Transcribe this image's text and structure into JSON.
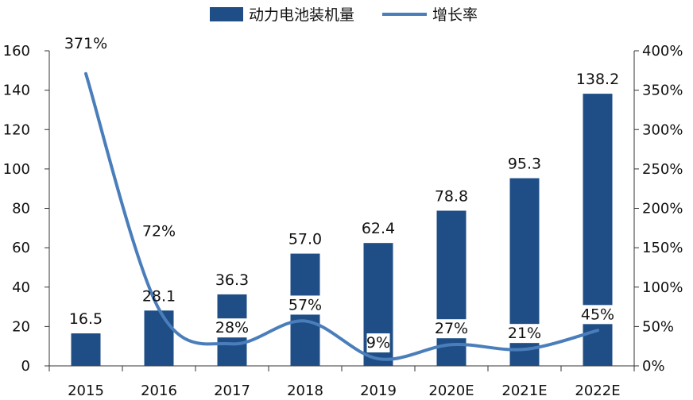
{
  "chart_data": {
    "type": "bar",
    "categories": [
      "2015",
      "2016",
      "2017",
      "2018",
      "2019",
      "2020E",
      "2021E",
      "2022E"
    ],
    "series": [
      {
        "name": "动力电池装机量",
        "chart_type": "bar",
        "axis": "left",
        "values": [
          16.5,
          28.1,
          36.3,
          57.0,
          62.4,
          78.8,
          95.3,
          138.2
        ],
        "labels": [
          "16.5",
          "28.1",
          "36.3",
          "57.0",
          "62.4",
          "78.8",
          "95.3",
          "138.2"
        ],
        "color": "#1f4e86"
      },
      {
        "name": "增长率",
        "chart_type": "line",
        "axis": "right",
        "values": [
          371,
          72,
          28,
          57,
          9,
          27,
          21,
          45
        ],
        "labels": [
          "371%",
          "72%",
          "28%",
          "57%",
          "9%",
          "27%",
          "21%",
          "45%"
        ],
        "color": "#4a7ebb"
      }
    ],
    "y_left": {
      "min": 0,
      "max": 160,
      "ticks": [
        "0",
        "20",
        "40",
        "60",
        "80",
        "100",
        "120",
        "140",
        "160"
      ]
    },
    "y_right": {
      "min": 0,
      "max": 400,
      "ticks": [
        "0%",
        "50%",
        "100%",
        "150%",
        "200%",
        "250%",
        "300%",
        "350%",
        "400%"
      ]
    },
    "legend_position": "top-center",
    "grid": false
  }
}
